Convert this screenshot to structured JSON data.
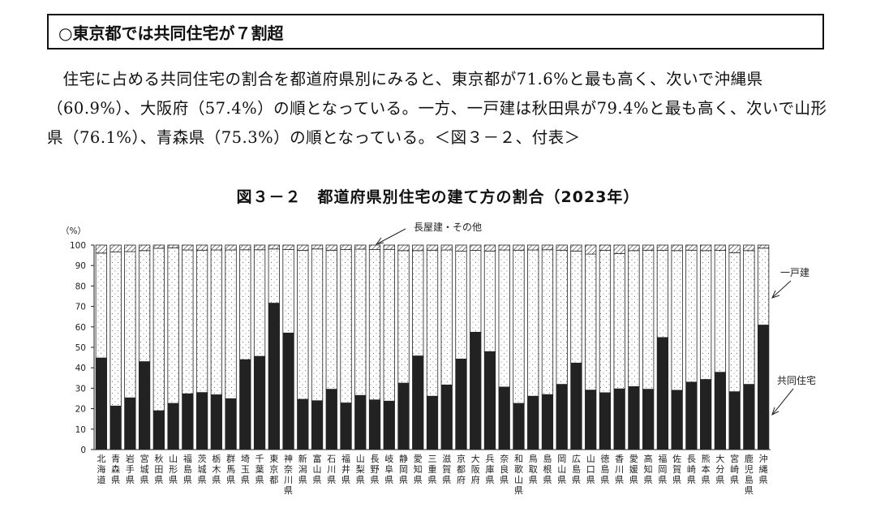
{
  "section_heading": "○東京都では共同住宅が７割超",
  "paragraph": "住宅に占める共同住宅の割合を都道府県別にみると、東京都が71.6%と最も高く、次いで沖縄県（60.9%）、大阪府（57.4%）の順となっている。一方、一戸建は秋田県が79.4%と最も高く、次いで山形県（76.1%）、青森県（75.3%）の順となっている。＜図３－２、付表＞",
  "figure_title": "図３－２　都道府県別住宅の建て方の割合（2023年）",
  "colors": {
    "kyodo": "#222222",
    "ikko": "#ffffff",
    "other": "#ffffff",
    "border": "#222222"
  },
  "chart_data": {
    "type": "bar",
    "stacked": true,
    "ylabel": "（%）",
    "ylim": [
      0,
      100
    ],
    "yticks": [
      0,
      10,
      20,
      30,
      40,
      50,
      60,
      70,
      80,
      90,
      100
    ],
    "categories": [
      "北海道",
      "青森県",
      "岩手県",
      "宮城県",
      "秋田県",
      "山形県",
      "福島県",
      "茨城県",
      "栃木県",
      "群馬県",
      "埼玉県",
      "千葉県",
      "東京都",
      "神奈川県",
      "新潟県",
      "富山県",
      "石川県",
      "福井県",
      "山梨県",
      "長野県",
      "岐阜県",
      "静岡県",
      "愛知県",
      "三重県",
      "滋賀県",
      "京都府",
      "大阪府",
      "兵庫県",
      "奈良県",
      "和歌山県",
      "鳥取県",
      "島根県",
      "岡山県",
      "広島県",
      "山口県",
      "徳島県",
      "香川県",
      "愛媛県",
      "高知県",
      "福岡県",
      "佐賀県",
      "長崎県",
      "熊本県",
      "大分県",
      "宮崎県",
      "鹿児島県",
      "沖縄県"
    ],
    "series": [
      {
        "name": "共同住宅",
        "values": [
          44.8,
          21.3,
          25.3,
          43.0,
          19.0,
          22.6,
          27.3,
          27.9,
          26.8,
          24.9,
          44.0,
          45.6,
          71.6,
          57.0,
          24.6,
          23.9,
          29.5,
          22.8,
          26.5,
          24.3,
          23.7,
          32.5,
          45.8,
          26.1,
          31.6,
          44.3,
          57.4,
          47.9,
          30.6,
          22.6,
          26.1,
          26.9,
          31.9,
          42.3,
          29.1,
          27.8,
          29.7,
          30.8,
          29.5,
          54.8,
          29.0,
          33.0,
          34.3,
          37.8,
          28.3,
          31.9,
          60.9
        ]
      },
      {
        "name": "一戸建",
        "values": [
          51.3,
          75.3,
          71.5,
          54.3,
          79.4,
          76.1,
          70.3,
          69.6,
          70.8,
          72.7,
          53.7,
          52.1,
          26.5,
          40.8,
          72.8,
          74.2,
          68.0,
          75.0,
          71.5,
          73.5,
          74.2,
          64.8,
          51.5,
          71.4,
          66.0,
          52.7,
          40.0,
          49.2,
          67.0,
          74.9,
          71.5,
          70.8,
          65.6,
          54.8,
          66.5,
          69.6,
          66.2,
          66.5,
          68.0,
          42.6,
          68.3,
          64.5,
          63.0,
          59.6,
          68.0,
          65.4,
          37.6
        ]
      },
      {
        "name": "長屋建・その他",
        "values": [
          3.9,
          3.4,
          3.2,
          2.7,
          1.6,
          1.3,
          2.4,
          2.5,
          2.4,
          2.4,
          2.3,
          2.3,
          1.9,
          2.2,
          2.6,
          1.9,
          2.5,
          2.2,
          2.0,
          2.2,
          2.1,
          2.7,
          2.7,
          2.5,
          2.4,
          3.0,
          2.6,
          2.9,
          2.4,
          2.5,
          2.4,
          2.3,
          2.5,
          2.9,
          4.4,
          2.6,
          4.1,
          2.7,
          2.5,
          2.6,
          2.7,
          2.5,
          2.7,
          2.6,
          3.7,
          2.7,
          1.5
        ]
      }
    ],
    "annotations": [
      "長屋建・その他",
      "一戸建",
      "共同住宅"
    ],
    "grid": false
  }
}
